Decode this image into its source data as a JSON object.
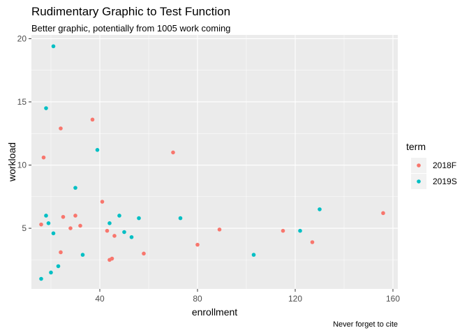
{
  "chart_data": {
    "type": "scatter",
    "title": "Rudimentary Graphic to Test Function",
    "subtitle": "Better graphic, potentially from 1005 work coming",
    "caption": "Never forget to cite",
    "xlabel": "enrollment",
    "ylabel": "workload",
    "xlim": [
      12,
      162
    ],
    "ylim": [
      0.2,
      20.3
    ],
    "x_ticks": [
      40,
      80,
      120,
      160
    ],
    "y_ticks": [
      5,
      10,
      15,
      20
    ],
    "grid": true,
    "legend_title": "term",
    "legend_position": "right",
    "series": [
      {
        "name": "2018F",
        "color": "#F8766D",
        "points": [
          {
            "x": 16,
            "y": 5.3
          },
          {
            "x": 17,
            "y": 10.6
          },
          {
            "x": 24,
            "y": 12.9
          },
          {
            "x": 24,
            "y": 3.1
          },
          {
            "x": 25,
            "y": 5.9
          },
          {
            "x": 28,
            "y": 5.0
          },
          {
            "x": 30,
            "y": 6.0
          },
          {
            "x": 32,
            "y": 5.2
          },
          {
            "x": 37,
            "y": 13.6
          },
          {
            "x": 41,
            "y": 7.1
          },
          {
            "x": 43,
            "y": 4.8
          },
          {
            "x": 44,
            "y": 2.5
          },
          {
            "x": 45,
            "y": 2.6
          },
          {
            "x": 46,
            "y": 4.4
          },
          {
            "x": 58,
            "y": 3.0
          },
          {
            "x": 70,
            "y": 11.0
          },
          {
            "x": 80,
            "y": 3.7
          },
          {
            "x": 89,
            "y": 4.9
          },
          {
            "x": 115,
            "y": 4.8
          },
          {
            "x": 127,
            "y": 3.9
          },
          {
            "x": 156,
            "y": 6.2
          }
        ]
      },
      {
        "name": "2019S",
        "color": "#00BFC4",
        "points": [
          {
            "x": 16,
            "y": 1.0
          },
          {
            "x": 18,
            "y": 14.5
          },
          {
            "x": 18,
            "y": 6.0
          },
          {
            "x": 19,
            "y": 5.4
          },
          {
            "x": 20,
            "y": 1.5
          },
          {
            "x": 21,
            "y": 19.4
          },
          {
            "x": 21,
            "y": 4.6
          },
          {
            "x": 23,
            "y": 2.0
          },
          {
            "x": 30,
            "y": 8.2
          },
          {
            "x": 33,
            "y": 2.9
          },
          {
            "x": 39,
            "y": 11.2
          },
          {
            "x": 44,
            "y": 5.4
          },
          {
            "x": 48,
            "y": 6.0
          },
          {
            "x": 50,
            "y": 4.7
          },
          {
            "x": 53,
            "y": 4.3
          },
          {
            "x": 56,
            "y": 5.8
          },
          {
            "x": 73,
            "y": 5.8
          },
          {
            "x": 103,
            "y": 2.9
          },
          {
            "x": 122,
            "y": 4.8
          },
          {
            "x": 130,
            "y": 6.5
          }
        ]
      }
    ]
  }
}
